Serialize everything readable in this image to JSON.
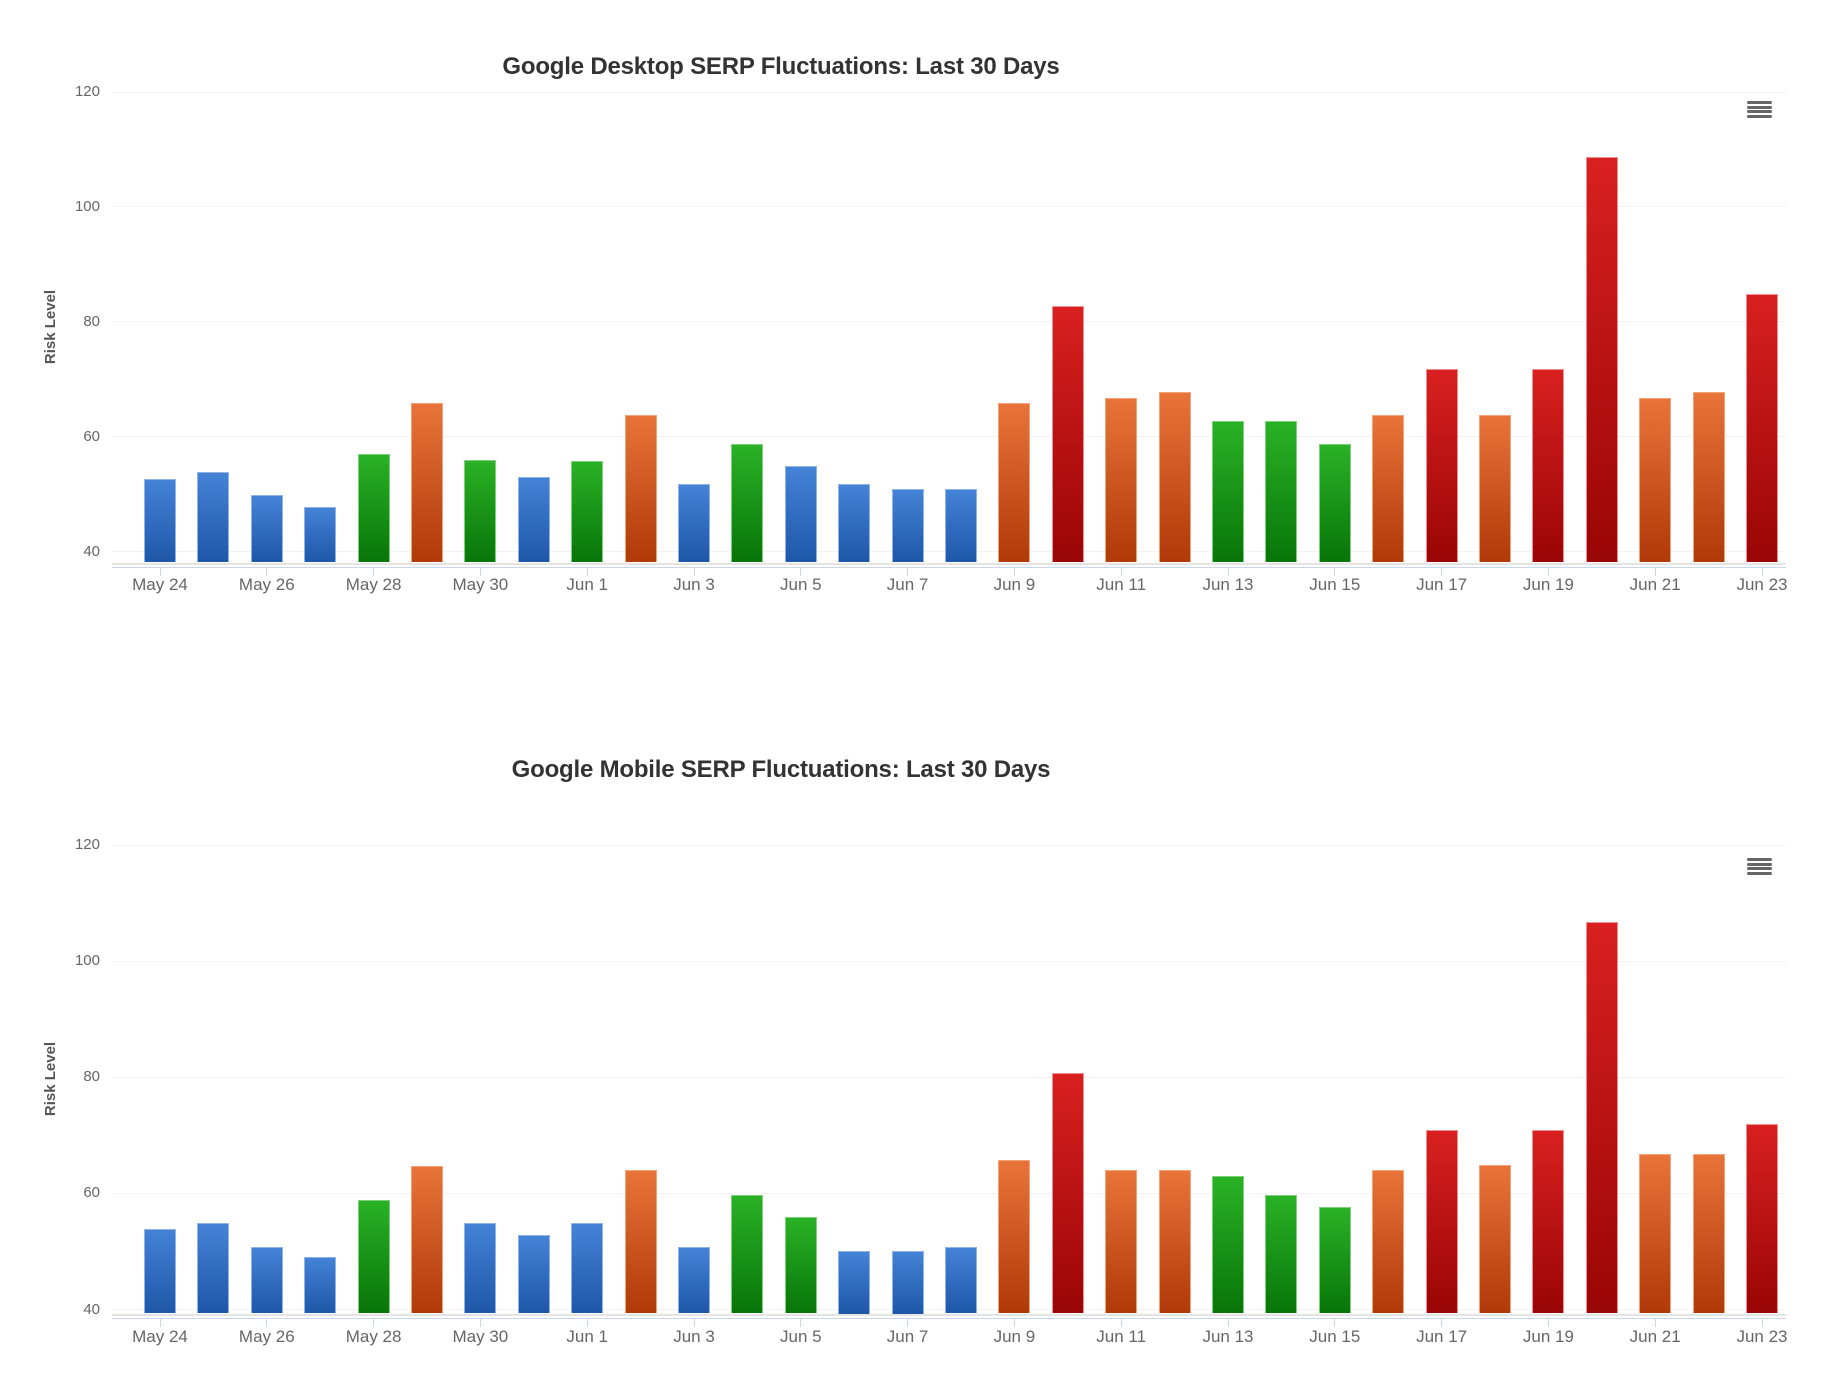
{
  "page": {
    "background": "#ffffff"
  },
  "controls": {
    "context_menu_icon": "hamburger-icon"
  },
  "level_colors": {
    "low": {
      "top": "#4483d6",
      "bottom": "#1e57a8",
      "border": "#8fb3e6"
    },
    "normal": {
      "top": "#2ab226",
      "bottom": "#087508",
      "border": "#7ecf7c"
    },
    "high": {
      "top": "#e8743a",
      "bottom": "#b03908",
      "border": "#f2a377"
    },
    "very_high": {
      "top": "#d92020",
      "bottom": "#9a0505",
      "border": "#ef8f8f"
    }
  },
  "chart_data": [
    {
      "type": "bar",
      "title": "Google Desktop SERP Fluctuations: Last 30 Days",
      "xlabel": "",
      "ylabel": "Risk Level",
      "ylim": [
        38,
        122
      ],
      "yticks": [
        40,
        60,
        80,
        100,
        120
      ],
      "grid": "horizontal",
      "legend": "none",
      "categories": [
        "May 24",
        "May 25",
        "May 26",
        "May 27",
        "May 28",
        "May 29",
        "May 30",
        "May 31",
        "Jun 1",
        "Jun 2",
        "Jun 3",
        "Jun 4",
        "Jun 5",
        "Jun 6",
        "Jun 7",
        "Jun 8",
        "Jun 9",
        "Jun 10",
        "Jun 11",
        "Jun 12",
        "Jun 13",
        "Jun 14",
        "Jun 15",
        "Jun 16",
        "Jun 17",
        "Jun 18",
        "Jun 19",
        "Jun 20",
        "Jun 21",
        "Jun 22",
        "Jun 23"
      ],
      "x_tick_labels": [
        "May 24",
        "May 26",
        "May 28",
        "May 30",
        "Jun 1",
        "Jun 3",
        "Jun 5",
        "Jun 7",
        "Jun 9",
        "Jun 11",
        "Jun 13",
        "Jun 15",
        "Jun 17",
        "Jun 19",
        "Jun 21",
        "Jun 23"
      ],
      "values": [
        52.7,
        53.8,
        49.9,
        47.8,
        56.9,
        65.8,
        55.9,
        52.9,
        55.8,
        63.7,
        51.7,
        58.7,
        54.8,
        51.7,
        50.9,
        50.9,
        65.8,
        82.8,
        66.8,
        67.8,
        62.8,
        62.8,
        58.7,
        63.7,
        71.7,
        63.7,
        71.7,
        108.7,
        66.8,
        67.8,
        84.8
      ],
      "levels": [
        "low",
        "low",
        "low",
        "low",
        "normal",
        "high",
        "normal",
        "low",
        "normal",
        "high",
        "low",
        "normal",
        "low",
        "low",
        "low",
        "low",
        "high",
        "very_high",
        "high",
        "high",
        "normal",
        "normal",
        "normal",
        "high",
        "very_high",
        "high",
        "very_high",
        "very_high",
        "high",
        "high",
        "very_high"
      ]
    },
    {
      "type": "bar",
      "title": "Google Mobile SERP Fluctuations: Last 30 Days",
      "xlabel": "",
      "ylabel": "Risk Level",
      "ylim": [
        38,
        122
      ],
      "yticks": [
        40,
        60,
        80,
        100,
        120
      ],
      "grid": "horizontal",
      "legend": "none",
      "categories": [
        "May 24",
        "May 25",
        "May 26",
        "May 27",
        "May 28",
        "May 29",
        "May 30",
        "May 31",
        "Jun 1",
        "Jun 2",
        "Jun 3",
        "Jun 4",
        "Jun 5",
        "Jun 6",
        "Jun 7",
        "Jun 8",
        "Jun 9",
        "Jun 10",
        "Jun 11",
        "Jun 12",
        "Jun 13",
        "Jun 14",
        "Jun 15",
        "Jun 16",
        "Jun 17",
        "Jun 18",
        "Jun 19",
        "Jun 20",
        "Jun 21",
        "Jun 22",
        "Jun 23"
      ],
      "x_tick_labels": [
        "May 24",
        "May 26",
        "May 28",
        "May 30",
        "Jun 1",
        "Jun 3",
        "Jun 5",
        "Jun 7",
        "Jun 9",
        "Jun 11",
        "Jun 13",
        "Jun 15",
        "Jun 17",
        "Jun 19",
        "Jun 21",
        "Jun 23"
      ],
      "values": [
        53.9,
        54.9,
        50.8,
        49.0,
        58.8,
        64.7,
        54.9,
        52.8,
        54.9,
        64.0,
        50.7,
        59.8,
        56.0,
        50.0,
        50.0,
        50.7,
        65.8,
        80.8,
        64.0,
        64.0,
        63.0,
        59.8,
        57.7,
        64.0,
        71.0,
        64.9,
        71.0,
        106.8,
        66.8,
        66.8,
        72.0
      ],
      "levels": [
        "low",
        "low",
        "low",
        "low",
        "normal",
        "high",
        "low",
        "low",
        "low",
        "high",
        "low",
        "normal",
        "normal",
        "low",
        "low",
        "low",
        "high",
        "very_high",
        "high",
        "high",
        "normal",
        "normal",
        "normal",
        "high",
        "very_high",
        "high",
        "very_high",
        "very_high",
        "high",
        "high",
        "very_high"
      ]
    }
  ]
}
